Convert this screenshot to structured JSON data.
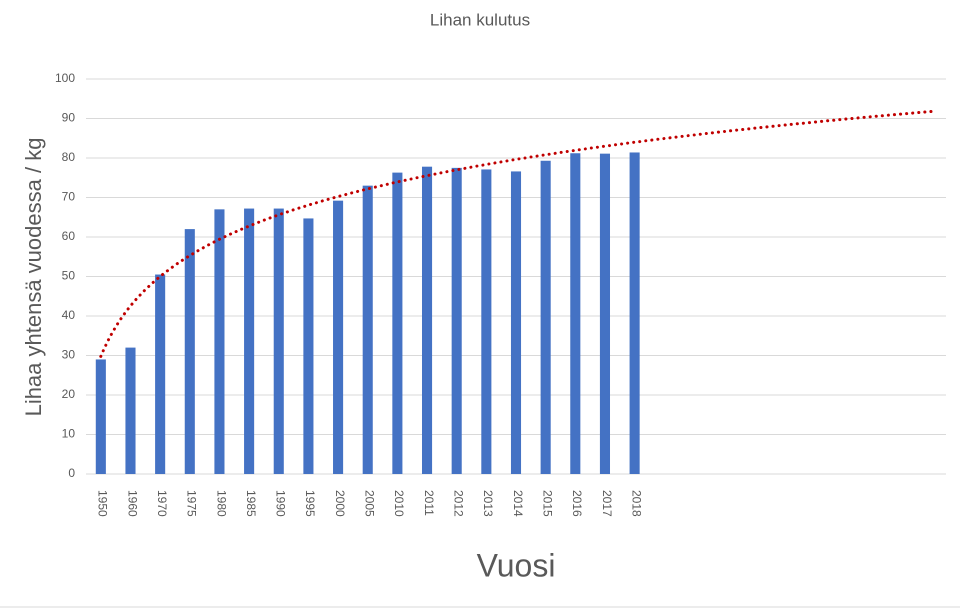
{
  "chart_data": {
    "type": "bar",
    "title": "Lihan kulutus",
    "y_label": "Lihaa yhtensä vuodessa / kg",
    "x_label": "Vuosi",
    "categories": [
      "1950",
      "1960",
      "1970",
      "1975",
      "1980",
      "1985",
      "1990",
      "1995",
      "2000",
      "2005",
      "2010",
      "2011",
      "2012",
      "2013",
      "2014",
      "2015",
      "2016",
      "2017",
      "2018",
      null,
      null,
      null,
      null,
      null,
      null,
      null,
      null,
      null,
      null
    ],
    "values": [
      29,
      32,
      50.5,
      62,
      67,
      67.2,
      67.2,
      64.7,
      69.2,
      73,
      76.3,
      77.8,
      77.5,
      77.1,
      76.6,
      79.3,
      81.2,
      81.1,
      81.4,
      null,
      null,
      null,
      null,
      null,
      null,
      null,
      null,
      null,
      null
    ],
    "color": "#4472c4",
    "ylim": [
      0,
      100
    ],
    "yticks": [
      0,
      10,
      20,
      30,
      40,
      50,
      60,
      70,
      80,
      90,
      100
    ],
    "grid": true,
    "trendline": {
      "kind": "logarithmic",
      "color": "#c00000"
    }
  }
}
